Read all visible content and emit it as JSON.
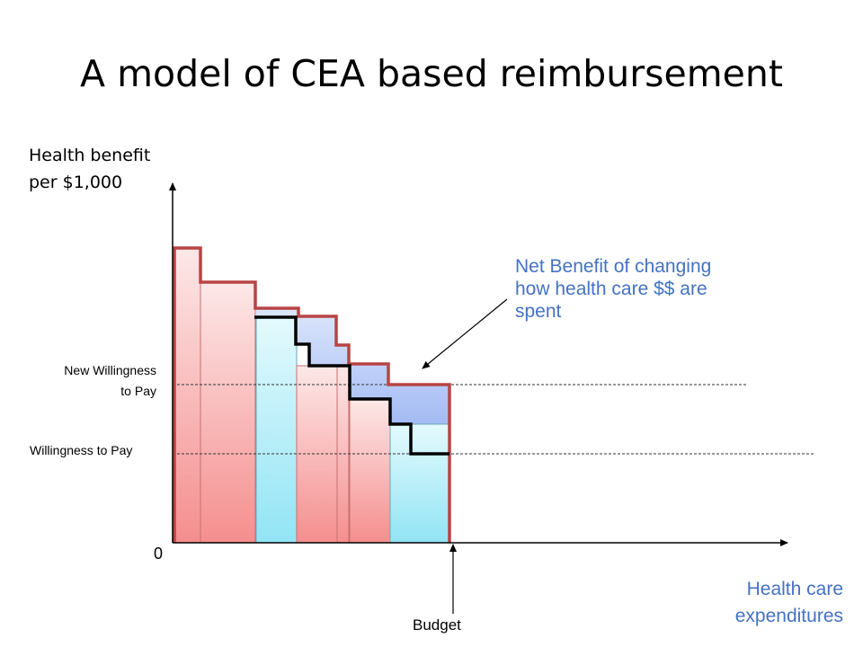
{
  "slide": {
    "title": "A model of CEA based reimbursement",
    "y_axis_label_line1": "Health benefit",
    "y_axis_label_line2": "per $1,000",
    "x_axis_label_line1": "Health care",
    "x_axis_label_line2": "expenditures",
    "origin_label": "0",
    "budget_label": "Budget",
    "new_wtp_label_line1": "New Willingness",
    "new_wtp_label_line2": "to Pay",
    "wtp_label": "Willingness to Pay",
    "callout_text": "Net Benefit of changing how health care $$ are spent"
  },
  "colors": {
    "red_bar_fill": "#f8a4a4",
    "blue_bar_fill": "#a8ecf8",
    "net_benefit_fill": "#aabff5",
    "old_frontier": "#b84444",
    "new_frontier": "#000000",
    "text_blue": "#4472c4"
  }
}
